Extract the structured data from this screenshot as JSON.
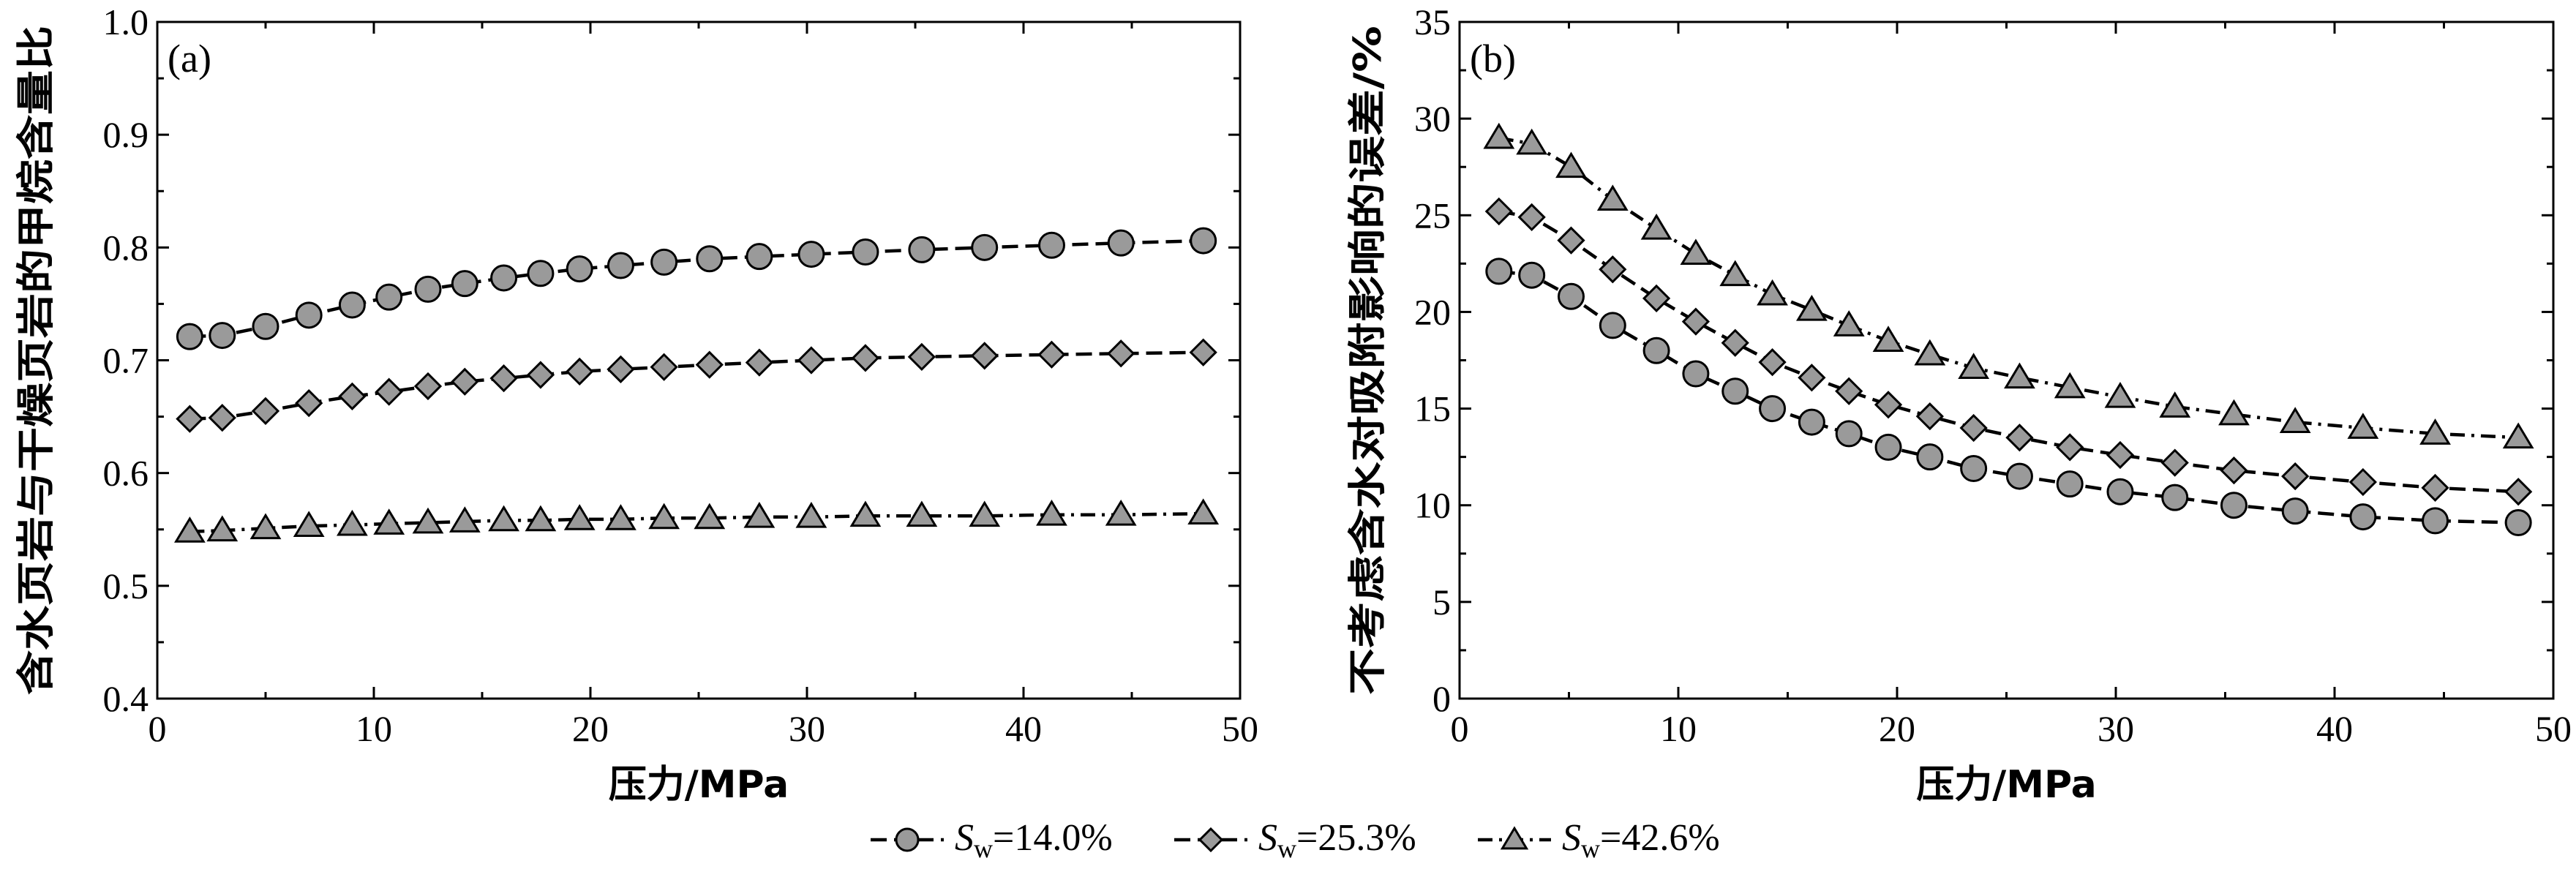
{
  "chart_data": [
    {
      "type": "line",
      "panel_label": "(a)",
      "xlabel": "压力/MPa",
      "ylabel": "含水页岩与干燥页岩的甲烷含量比",
      "xlim": [
        0,
        50
      ],
      "ylim": [
        0.4,
        1.0
      ],
      "x_ticks": [
        "0",
        "10",
        "20",
        "30",
        "40",
        "50"
      ],
      "y_ticks": [
        "0.4",
        "0.5",
        "0.6",
        "0.7",
        "0.8",
        "0.9",
        "1.0"
      ],
      "grid": false,
      "series": [
        {
          "name": "Sw=14.0%",
          "marker": "circle",
          "line_style": "dashed",
          "points": [
            [
              1.5,
              0.721
            ],
            [
              3,
              0.722
            ],
            [
              5,
              0.73
            ],
            [
              7,
              0.74
            ],
            [
              9,
              0.749
            ],
            [
              10.7,
              0.756
            ],
            [
              12.5,
              0.763
            ],
            [
              14.2,
              0.768
            ],
            [
              16,
              0.773
            ],
            [
              17.7,
              0.777
            ],
            [
              19.5,
              0.781
            ],
            [
              21.4,
              0.784
            ],
            [
              23.4,
              0.787
            ],
            [
              25.5,
              0.79
            ],
            [
              27.8,
              0.792
            ],
            [
              30.2,
              0.794
            ],
            [
              32.7,
              0.796
            ],
            [
              35.3,
              0.798
            ],
            [
              38.2,
              0.8
            ],
            [
              41.3,
              0.802
            ],
            [
              44.5,
              0.804
            ],
            [
              48.3,
              0.806
            ]
          ]
        },
        {
          "name": "Sw=25.3%",
          "marker": "diamond",
          "line_style": "dashed",
          "points": [
            [
              1.5,
              0.648
            ],
            [
              3,
              0.649
            ],
            [
              5,
              0.655
            ],
            [
              7,
              0.662
            ],
            [
              9,
              0.668
            ],
            [
              10.7,
              0.672
            ],
            [
              12.5,
              0.677
            ],
            [
              14.2,
              0.681
            ],
            [
              16,
              0.684
            ],
            [
              17.7,
              0.687
            ],
            [
              19.5,
              0.69
            ],
            [
              21.4,
              0.692
            ],
            [
              23.4,
              0.694
            ],
            [
              25.5,
              0.696
            ],
            [
              27.8,
              0.698
            ],
            [
              30.2,
              0.7
            ],
            [
              32.7,
              0.702
            ],
            [
              35.3,
              0.703
            ],
            [
              38.2,
              0.704
            ],
            [
              41.3,
              0.705
            ],
            [
              44.5,
              0.706
            ],
            [
              48.3,
              0.707
            ]
          ]
        },
        {
          "name": "Sw=42.6%",
          "marker": "triangle",
          "line_style": "dash-dot",
          "points": [
            [
              1.5,
              0.548
            ],
            [
              3,
              0.549
            ],
            [
              5,
              0.551
            ],
            [
              7,
              0.553
            ],
            [
              9,
              0.554
            ],
            [
              10.7,
              0.555
            ],
            [
              12.5,
              0.556
            ],
            [
              14.2,
              0.557
            ],
            [
              16,
              0.558
            ],
            [
              17.7,
              0.558
            ],
            [
              19.5,
              0.559
            ],
            [
              21.4,
              0.559
            ],
            [
              23.4,
              0.56
            ],
            [
              25.5,
              0.56
            ],
            [
              27.8,
              0.561
            ],
            [
              30.2,
              0.561
            ],
            [
              32.7,
              0.562
            ],
            [
              35.3,
              0.562
            ],
            [
              38.2,
              0.562
            ],
            [
              41.3,
              0.563
            ],
            [
              44.5,
              0.563
            ],
            [
              48.3,
              0.564
            ]
          ]
        }
      ]
    },
    {
      "type": "line",
      "panel_label": "(b)",
      "xlabel": "压力/MPa",
      "ylabel": "不考虑含水对吸附影响的误差/%",
      "xlim": [
        0,
        50
      ],
      "ylim": [
        0,
        35
      ],
      "x_ticks": [
        "0",
        "10",
        "20",
        "30",
        "40",
        "50"
      ],
      "y_ticks": [
        "0",
        "5",
        "10",
        "15",
        "20",
        "25",
        "30",
        "35"
      ],
      "grid": false,
      "series": [
        {
          "name": "Sw=14.0%",
          "marker": "circle",
          "line_style": "dashed",
          "points": [
            [
              1.8,
              22.1
            ],
            [
              3.3,
              21.9
            ],
            [
              5.1,
              20.8
            ],
            [
              7,
              19.3
            ],
            [
              9,
              18.0
            ],
            [
              10.8,
              16.8
            ],
            [
              12.6,
              15.9
            ],
            [
              14.3,
              15.0
            ],
            [
              16.1,
              14.3
            ],
            [
              17.8,
              13.7
            ],
            [
              19.6,
              13.0
            ],
            [
              21.5,
              12.5
            ],
            [
              23.5,
              11.9
            ],
            [
              25.6,
              11.5
            ],
            [
              27.9,
              11.1
            ],
            [
              30.2,
              10.7
            ],
            [
              32.7,
              10.4
            ],
            [
              35.4,
              10.0
            ],
            [
              38.2,
              9.7
            ],
            [
              41.3,
              9.4
            ],
            [
              44.6,
              9.2
            ],
            [
              48.4,
              9.1
            ]
          ]
        },
        {
          "name": "Sw=25.3%",
          "marker": "diamond",
          "line_style": "dashed",
          "points": [
            [
              1.8,
              25.2
            ],
            [
              3.3,
              24.9
            ],
            [
              5.1,
              23.7
            ],
            [
              7,
              22.2
            ],
            [
              9,
              20.7
            ],
            [
              10.8,
              19.5
            ],
            [
              12.6,
              18.4
            ],
            [
              14.3,
              17.4
            ],
            [
              16.1,
              16.6
            ],
            [
              17.8,
              15.9
            ],
            [
              19.6,
              15.2
            ],
            [
              21.5,
              14.6
            ],
            [
              23.5,
              14.0
            ],
            [
              25.6,
              13.5
            ],
            [
              27.9,
              13.0
            ],
            [
              30.2,
              12.6
            ],
            [
              32.7,
              12.2
            ],
            [
              35.4,
              11.8
            ],
            [
              38.2,
              11.5
            ],
            [
              41.3,
              11.2
            ],
            [
              44.6,
              10.9
            ],
            [
              48.4,
              10.7
            ]
          ]
        },
        {
          "name": "Sw=42.6%",
          "marker": "triangle",
          "line_style": "dash-dot",
          "points": [
            [
              1.8,
              29.0
            ],
            [
              3.3,
              28.7
            ],
            [
              5.1,
              27.5
            ],
            [
              7,
              25.8
            ],
            [
              9,
              24.3
            ],
            [
              10.8,
              23.0
            ],
            [
              12.6,
              21.9
            ],
            [
              14.3,
              20.9
            ],
            [
              16.1,
              20.1
            ],
            [
              17.8,
              19.3
            ],
            [
              19.6,
              18.5
            ],
            [
              21.5,
              17.8
            ],
            [
              23.5,
              17.1
            ],
            [
              25.6,
              16.6
            ],
            [
              27.9,
              16.1
            ],
            [
              30.2,
              15.6
            ],
            [
              32.7,
              15.1
            ],
            [
              35.4,
              14.7
            ],
            [
              38.2,
              14.3
            ],
            [
              41.3,
              14.0
            ],
            [
              44.6,
              13.7
            ],
            [
              48.4,
              13.5
            ]
          ]
        }
      ]
    }
  ],
  "legend": {
    "placement": "bottom-center",
    "items": [
      {
        "symbol": "S",
        "subscript": "w",
        "value": "=14.0%",
        "marker": "circle",
        "line_style": "dashed"
      },
      {
        "symbol": "S",
        "subscript": "w",
        "value": "=25.3%",
        "marker": "diamond",
        "line_style": "dashed"
      },
      {
        "symbol": "S",
        "subscript": "w",
        "value": "=42.6%",
        "marker": "triangle",
        "line_style": "dash-dot"
      }
    ]
  }
}
